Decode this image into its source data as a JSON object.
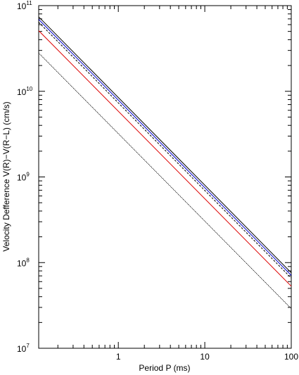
{
  "chart_data": {
    "type": "line",
    "title": "",
    "xlabel": "Period P (ms)",
    "ylabel": "Velocity Defference V(R)−V(R−L) (cm/s)",
    "xscale": "log",
    "yscale": "log",
    "xlim": [
      0.12,
      100
    ],
    "ylim": [
      10000000.0,
      100000000000.0
    ],
    "grid": false,
    "legend": "none",
    "x_ticks": [
      {
        "value": 1,
        "label": "1"
      },
      {
        "value": 10,
        "label": "10"
      },
      {
        "value": 100,
        "label": "100"
      }
    ],
    "y_ticks": [
      {
        "value": 10000000.0,
        "base": "10",
        "exp": "7"
      },
      {
        "value": 100000000.0,
        "base": "10",
        "exp": "8"
      },
      {
        "value": 1000000000.0,
        "base": "10",
        "exp": "9"
      },
      {
        "value": 10000000000.0,
        "base": "10",
        "exp": "10"
      },
      {
        "value": 100000000000.0,
        "base": "10",
        "exp": "11"
      }
    ],
    "series": [
      {
        "color": "#000000",
        "dash": "",
        "x": [
          0.12,
          100
        ],
        "y": [
          74000000000.0,
          76000000.0
        ]
      },
      {
        "color": "#0000cc",
        "dash": "",
        "x": [
          0.12,
          100
        ],
        "y": [
          69000000000.0,
          71000000.0
        ]
      },
      {
        "color": "#000000",
        "dash": "3,2",
        "x": [
          0.12,
          100
        ],
        "y": [
          64000000000.0,
          66000000.0
        ]
      },
      {
        "color": "#dd0000",
        "dash": "",
        "x": [
          0.12,
          100
        ],
        "y": [
          51000000000.0,
          53000000.0
        ]
      },
      {
        "color": "#000000",
        "dash": "1,1",
        "x": [
          0.12,
          100
        ],
        "y": [
          28000000000.0,
          29000000.0
        ]
      }
    ]
  }
}
